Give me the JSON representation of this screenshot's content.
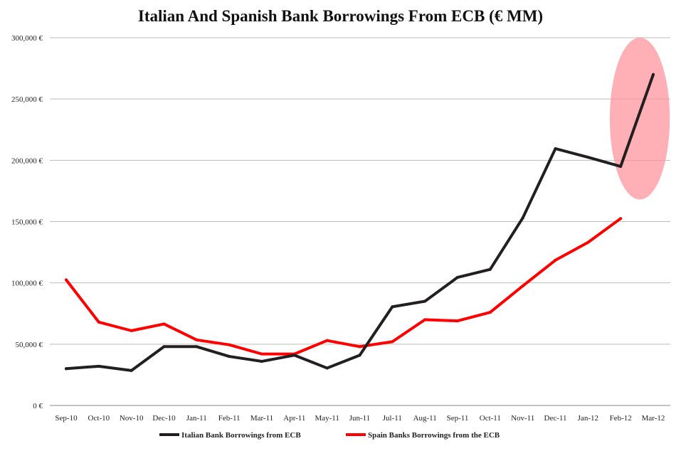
{
  "chart_data": {
    "type": "line",
    "title": "Italian And Spanish Bank Borrowings From ECB (€ MM)",
    "xlabel": "",
    "ylabel": "",
    "ylim": [
      0,
      300000
    ],
    "ytick_values": [
      0,
      50000,
      100000,
      150000,
      200000,
      250000,
      300000
    ],
    "ytick_labels": [
      "0 €",
      "50,000 €",
      "100,000 €",
      "150,000 €",
      "200,000 €",
      "250,000 €",
      "300,000 €"
    ],
    "grid": true,
    "legend_position": "bottom",
    "categories": [
      "Sep-10",
      "Oct-10",
      "Nov-10",
      "Dec-10",
      "Jan-11",
      "Feb-11",
      "Mar-11",
      "Apr-11",
      "May-11",
      "Jun-11",
      "Jul-11",
      "Aug-11",
      "Sep-11",
      "Oct-11",
      "Nov-11",
      "Dec-11",
      "Jan-12",
      "Feb-12",
      "Mar-12"
    ],
    "series": [
      {
        "name": "Italian Bank Borrowings from ECB",
        "color": "#231f20",
        "values": [
          30000,
          32000,
          28500,
          48000,
          48000,
          40000,
          36000,
          41000,
          30500,
          41000,
          80500,
          85000,
          104500,
          111000,
          153000,
          209500,
          202500,
          195000,
          270000
        ]
      },
      {
        "name": "Spain Banks Borrowings from the ECB",
        "color": "#ff0000",
        "values": [
          102500,
          68000,
          61000,
          66500,
          53500,
          49500,
          42000,
          42000,
          53000,
          48000,
          52000,
          70000,
          69000,
          76000,
          97500,
          118500,
          133000,
          152500,
          null
        ]
      }
    ],
    "highlight": {
      "type": "ellipse",
      "color": "#ff8a95",
      "around": "Feb-12 to Mar-12 Italian spike"
    }
  }
}
